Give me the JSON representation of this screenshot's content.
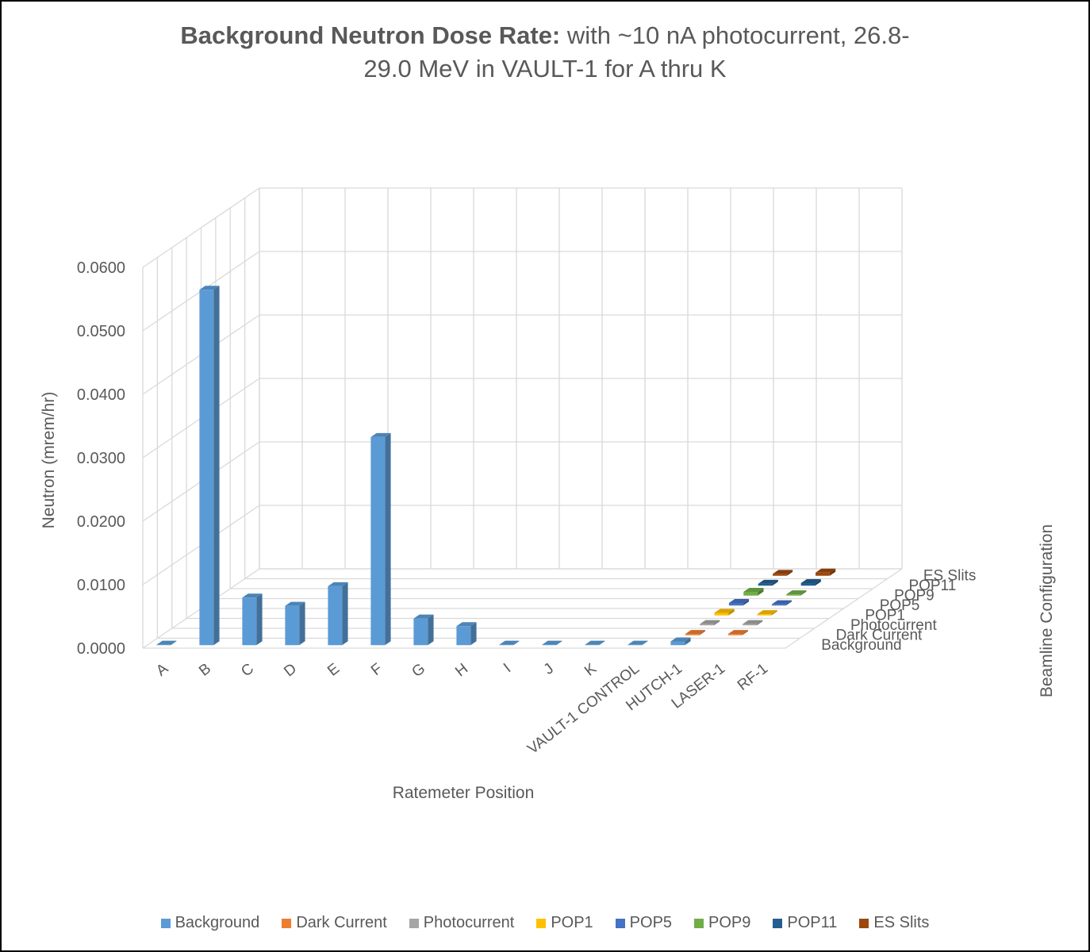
{
  "chart_data": {
    "type": "bar",
    "subtype": "3d-column",
    "title_bold": "Background Neutron Dose Rate:",
    "title_rest": "  with ~10 nA photocurrent, 26.8-29.0 MeV in VAULT-1 for A thru K",
    "title_line1_rest": "  with ~10 nA photocurrent, 26.8-",
    "title_line2": "29.0 MeV in VAULT-1 for A thru K",
    "xlabel": "Ratemeter Position",
    "ylabel": "Neutron (mrem/hr)",
    "zlabel": "Beamline Configuration",
    "ylim": [
      0,
      0.06
    ],
    "y_ticks": [
      "0.0000",
      "0.0100",
      "0.0200",
      "0.0300",
      "0.0400",
      "0.0500",
      "0.0600"
    ],
    "categories": [
      "A",
      "B",
      "C",
      "D",
      "E",
      "F",
      "G",
      "H",
      "I",
      "J",
      "K",
      "VAULT-1 CONTROL",
      "HUTCH-1",
      "LASER-1",
      "RF-1"
    ],
    "grid": true,
    "legend_position": "bottom",
    "series": [
      {
        "name": "Background",
        "color": "#5B9BD5",
        "values": [
          0.0,
          0.056,
          0.0075,
          0.0062,
          0.0093,
          0.0328,
          0.0042,
          0.003,
          0.0,
          0.0,
          0.0,
          0.0,
          0.0006,
          null,
          null
        ]
      },
      {
        "name": "Dark Current",
        "color": "#ED7D31",
        "values": [
          null,
          null,
          null,
          null,
          null,
          null,
          null,
          null,
          null,
          null,
          null,
          null,
          0.0002,
          0.0002,
          null
        ]
      },
      {
        "name": "Photocurrent",
        "color": "#A5A5A5",
        "values": [
          null,
          null,
          null,
          null,
          null,
          null,
          null,
          null,
          null,
          null,
          null,
          null,
          0.0002,
          0.0002,
          null
        ]
      },
      {
        "name": "POP1",
        "color": "#FFC000",
        "values": [
          null,
          null,
          null,
          null,
          null,
          null,
          null,
          null,
          null,
          null,
          null,
          null,
          0.0004,
          0.0002,
          null
        ]
      },
      {
        "name": "POP5",
        "color": "#4472C4",
        "values": [
          null,
          null,
          null,
          null,
          null,
          null,
          null,
          null,
          null,
          null,
          null,
          null,
          0.0004,
          0.0002,
          null
        ]
      },
      {
        "name": "POP9",
        "color": "#70AD47",
        "values": [
          null,
          null,
          null,
          null,
          null,
          null,
          null,
          null,
          null,
          null,
          null,
          null,
          0.0006,
          0.0002,
          null
        ]
      },
      {
        "name": "POP11",
        "color": "#255E91",
        "values": [
          null,
          null,
          null,
          null,
          null,
          null,
          null,
          null,
          null,
          null,
          null,
          null,
          0.0003,
          0.0004,
          null
        ]
      },
      {
        "name": "ES Slits",
        "color": "#9E480E",
        "values": [
          null,
          null,
          null,
          null,
          null,
          null,
          null,
          null,
          null,
          null,
          null,
          null,
          0.0003,
          0.0005,
          null
        ]
      }
    ]
  }
}
